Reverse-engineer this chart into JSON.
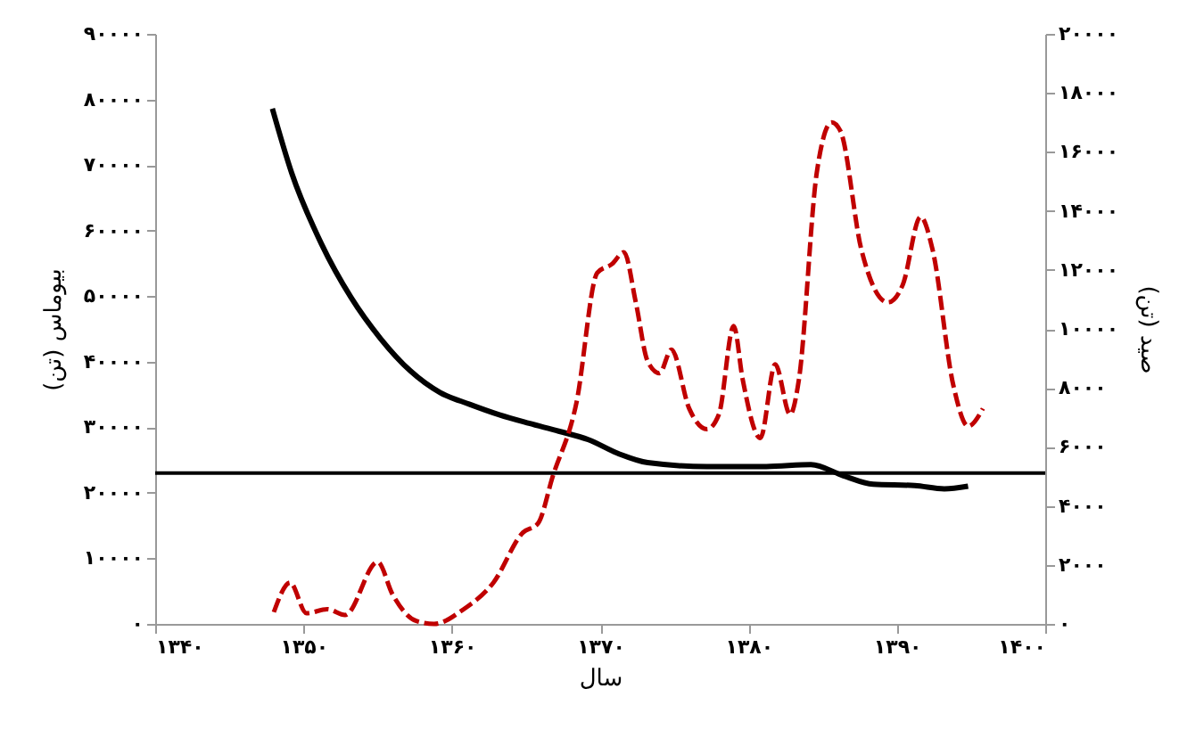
{
  "chart_data": {
    "type": "line",
    "xlabel": "سال",
    "ylabel": "بیوماس (تن)",
    "y2label": "صید (تن)",
    "xlim": [
      1340,
      1400
    ],
    "xticks": [
      {
        "value": 1340,
        "label": "۱۳۴۰"
      },
      {
        "value": 1350,
        "label": "۱۳۵۰"
      },
      {
        "value": 1360,
        "label": "۱۳۶۰"
      },
      {
        "value": 1370,
        "label": "۱۳۷۰"
      },
      {
        "value": 1380,
        "label": "۱۳۸۰"
      },
      {
        "value": 1390,
        "label": "۱۳۹۰"
      },
      {
        "value": 1400,
        "label": "۱۴۰۰"
      }
    ],
    "ylim": [
      0,
      90000
    ],
    "yticks": [
      {
        "value": 0,
        "label": "۰"
      },
      {
        "value": 10000,
        "label": "۱۰۰۰۰"
      },
      {
        "value": 20000,
        "label": "۲۰۰۰۰"
      },
      {
        "value": 30000,
        "label": "۳۰۰۰۰"
      },
      {
        "value": 40000,
        "label": "۴۰۰۰۰"
      },
      {
        "value": 50000,
        "label": "۵۰۰۰۰"
      },
      {
        "value": 60000,
        "label": "۶۰۰۰۰"
      },
      {
        "value": 70000,
        "label": "۷۰۰۰۰"
      },
      {
        "value": 80000,
        "label": "۸۰۰۰۰"
      },
      {
        "value": 90000,
        "label": "۹۰۰۰۰"
      }
    ],
    "y2lim": [
      0,
      20000
    ],
    "y2ticks": [
      {
        "value": 0,
        "label": "۰"
      },
      {
        "value": 2000,
        "label": "۲۰۰۰"
      },
      {
        "value": 4000,
        "label": "۴۰۰۰"
      },
      {
        "value": 6000,
        "label": "۶۰۰۰"
      },
      {
        "value": 8000,
        "label": "۸۰۰۰"
      },
      {
        "value": 10000,
        "label": "۱۰۰۰۰"
      },
      {
        "value": 12000,
        "label": "۱۲۰۰۰"
      },
      {
        "value": 14000,
        "label": "۱۴۰۰۰"
      },
      {
        "value": 16000,
        "label": "۱۶۰۰۰"
      },
      {
        "value": 18000,
        "label": "۱۸۰۰۰"
      },
      {
        "value": 20000,
        "label": "۲۰۰۰۰"
      }
    ],
    "series": [
      {
        "color": "#000000",
        "line_style": "solid",
        "x": [
          1347.9,
          1349.2,
          1351.2,
          1353.2,
          1355.2,
          1357.2,
          1359.2,
          1361.2,
          1363.2,
          1365.2,
          1367.2,
          1369.2,
          1371.2,
          1373.2,
          1377.2,
          1381.2,
          1384.2,
          1386.4,
          1388.4,
          1391.2,
          1393.2,
          1394.8
        ],
        "values": [
          78600,
          68800,
          58000,
          49800,
          43500,
          38600,
          35300,
          33500,
          31900,
          30600,
          29400,
          28100,
          26000,
          24600,
          24000,
          24000,
          24300,
          22600,
          21300,
          21100,
          20600,
          21000
        ]
      },
      {
        "color": "#c00000",
        "line_style": "dashed",
        "axis": "y2",
        "x": [
          1348,
          1349.1,
          1350.2,
          1351.6,
          1352.8,
          1355,
          1356,
          1357.6,
          1358.8,
          1360.8,
          1362.8,
          1364.8,
          1365.8,
          1366.8,
          1368.4,
          1369.8,
          1370.8,
          1371.6,
          1372.4,
          1373.2,
          1374,
          1374.8,
          1376,
          1377.2,
          1378,
          1379,
          1379.6,
          1380.8,
          1381.8,
          1382.8,
          1383.4,
          1384.6,
          1385.6,
          1386.2,
          1387.6,
          1389.4,
          1390.4,
          1391.6,
          1392.4,
          1393.8,
          1394.8,
          1395.8
        ],
        "values": [
          400,
          1400,
          360,
          500,
          300,
          2100,
          1000,
          100,
          0,
          500,
          1400,
          3100,
          3400,
          5000,
          7500,
          11900,
          12200,
          12600,
          10900,
          8900,
          8500,
          9300,
          7300,
          6600,
          7100,
          10100,
          8300,
          6300,
          8800,
          7100,
          8300,
          15300,
          17000,
          16700,
          12700,
          10900,
          11500,
          13800,
          12700,
          8100,
          6700,
          7300
        ]
      }
    ],
    "ref_lines": [
      {
        "axis": "y",
        "value": 23000,
        "color": "#000000"
      }
    ],
    "grid": false
  }
}
